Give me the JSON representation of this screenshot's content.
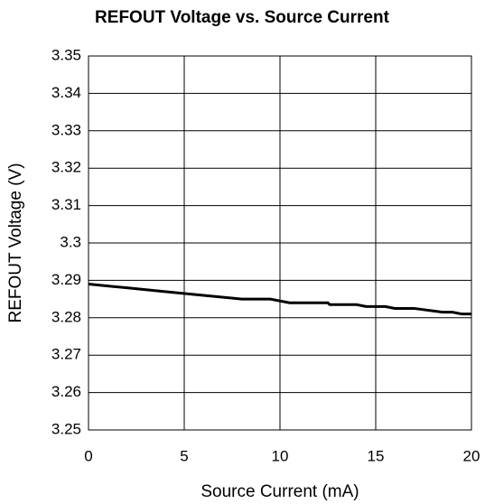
{
  "chart_data": {
    "type": "line",
    "title": "REFOUT Voltage vs. Source Current",
    "x_label": "Source Current (mA)",
    "y_label": "REFOUT Voltage (V)",
    "xlim": [
      0,
      20
    ],
    "xticks": [
      0,
      5,
      10,
      15,
      20
    ],
    "ylim": [
      3.25,
      3.35
    ],
    "yticks": [
      3.25,
      3.26,
      3.27,
      3.28,
      3.29,
      3.3,
      3.31,
      3.32,
      3.33,
      3.34,
      3.35
    ],
    "grid": true,
    "x": [
      0,
      2,
      4,
      6,
      8,
      9.5,
      10.5,
      12.5,
      12.6,
      14,
      14.5,
      15.5,
      16,
      17,
      18.5,
      19,
      19.5,
      20
    ],
    "series": [
      {
        "name": "REFOUT",
        "color": "#000000",
        "values": [
          3.289,
          3.288,
          3.287,
          3.286,
          3.285,
          3.285,
          3.284,
          3.284,
          3.2835,
          3.2835,
          3.283,
          3.283,
          3.2825,
          3.2825,
          3.2815,
          3.2815,
          3.281,
          3.281
        ]
      }
    ]
  }
}
